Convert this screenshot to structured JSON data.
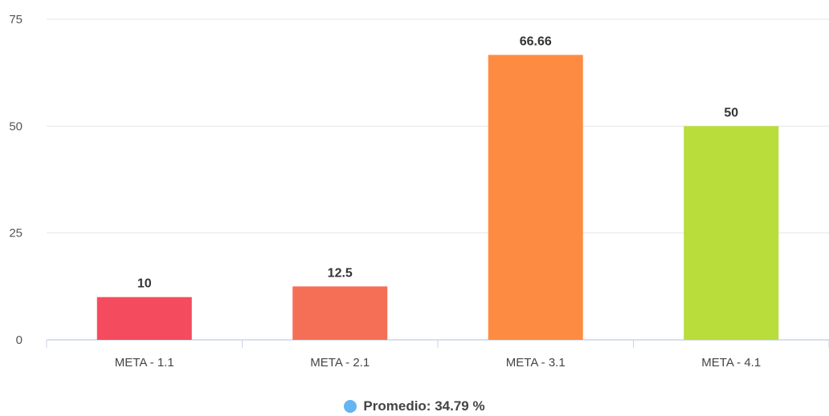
{
  "chart_data": {
    "type": "bar",
    "categories": [
      "META - 1.1",
      "META - 2.1",
      "META - 3.1",
      "META - 4.1"
    ],
    "values": [
      10,
      12.5,
      66.66,
      50
    ],
    "data_labels": [
      "10",
      "12.5",
      "66.66",
      "50"
    ],
    "colors": [
      "#f44b5e",
      "#f56f57",
      "#fd8c42",
      "#b9dd3b"
    ],
    "ylim": [
      0,
      75
    ],
    "yticks": [
      0,
      25,
      50,
      75
    ],
    "grid": true,
    "legend_position": "bottom-center"
  },
  "legend": {
    "label": "Promedio: 34.79 %",
    "color": "#64b5f0"
  }
}
